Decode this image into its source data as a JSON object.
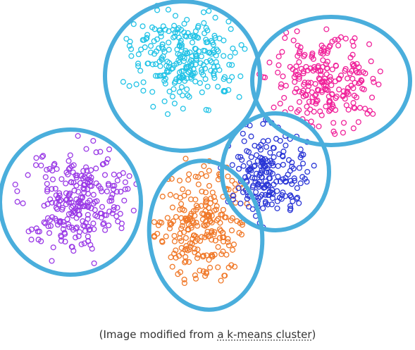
{
  "clusters": [
    {
      "name": "cyan",
      "color": "#22c3e6",
      "count": 260
    },
    {
      "name": "magenta",
      "color": "#f0229a",
      "count": 230
    },
    {
      "name": "purple",
      "color": "#9a3ae6",
      "count": 260
    },
    {
      "name": "orange",
      "color": "#f07828",
      "count": 240
    },
    {
      "name": "blue",
      "color": "#2a36d6",
      "count": 200
    }
  ],
  "ring_color": "#4aaedc",
  "caption": {
    "prefix": "(Image modified from ",
    "link": "a k-means cluster",
    "suffix": ")"
  }
}
